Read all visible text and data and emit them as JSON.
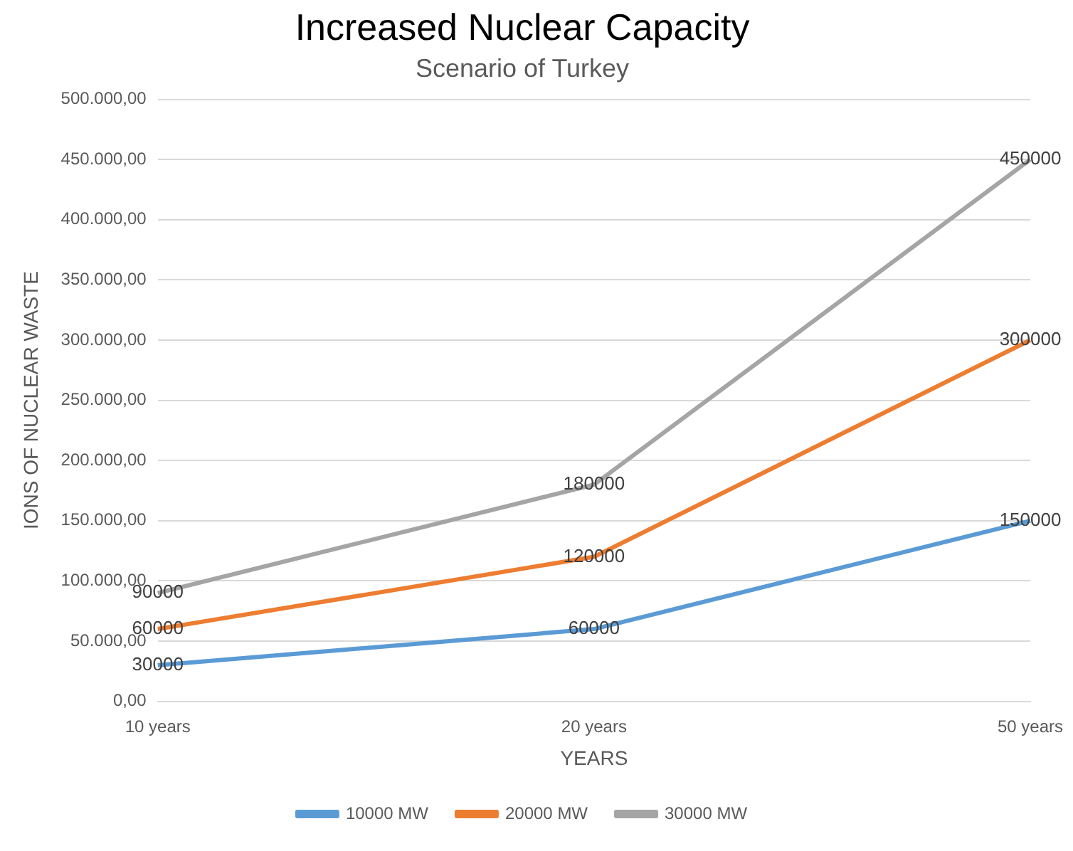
{
  "chart_data": {
    "type": "line",
    "title": "Increased Nuclear Capacity",
    "subtitle": "Scenario of Turkey",
    "xlabel": "YEARS",
    "ylabel": "IONS OF NUCLEAR WASTE",
    "categories": [
      "10 years",
      "20 years",
      "50 years"
    ],
    "series": [
      {
        "name": "10000 MW",
        "color": "#5b9bd5",
        "values": [
          30000,
          60000,
          150000
        ]
      },
      {
        "name": "20000 MW",
        "color": "#ed7d31",
        "values": [
          60000,
          120000,
          300000
        ]
      },
      {
        "name": "30000 MW",
        "color": "#a5a5a5",
        "values": [
          90000,
          180000,
          450000
        ]
      }
    ],
    "ylim": [
      0,
      500000
    ],
    "yticks": [
      {
        "value": 0,
        "label": "0,00"
      },
      {
        "value": 50000,
        "label": "50.000,00"
      },
      {
        "value": 100000,
        "label": "100.000,00"
      },
      {
        "value": 150000,
        "label": "150.000,00"
      },
      {
        "value": 200000,
        "label": "200.000,00"
      },
      {
        "value": 250000,
        "label": "250.000,00"
      },
      {
        "value": 300000,
        "label": "300.000,00"
      },
      {
        "value": 350000,
        "label": "350.000,00"
      },
      {
        "value": 400000,
        "label": "400.000,00"
      },
      {
        "value": 450000,
        "label": "450.000,00"
      },
      {
        "value": 500000,
        "label": "500.000,00"
      }
    ],
    "grid": "y",
    "legend": "bottom",
    "marker": "none",
    "line_style": "solid",
    "data_labels": true
  }
}
